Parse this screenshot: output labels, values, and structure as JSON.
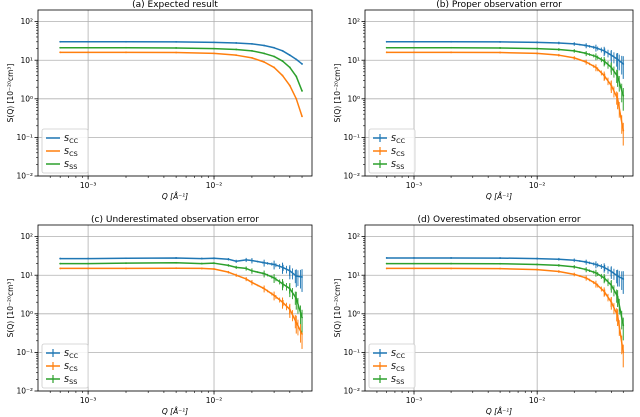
{
  "figure": {
    "axes": {
      "xlabel": "Q [Å⁻¹]",
      "ylabel": "S(Q) [10⁻²⁰cm³]",
      "x_ticks": [
        {
          "value": 0.001,
          "label": "10⁻³"
        },
        {
          "value": 0.01,
          "label": "10⁻²"
        }
      ],
      "y_ticks": [
        {
          "value": 0.01,
          "label": "10⁻²"
        },
        {
          "value": 0.1,
          "label": "10⁻¹"
        },
        {
          "value": 1,
          "label": "10⁰"
        },
        {
          "value": 10,
          "label": "10¹"
        },
        {
          "value": 100,
          "label": "10²"
        }
      ],
      "legend": [
        "S_CC",
        "S_CS",
        "S_SS"
      ]
    }
  },
  "chart_data": [
    {
      "type": "line",
      "title": "(a) Expected result",
      "xlabel": "Q [Å⁻¹]",
      "ylabel": "S(Q) [10⁻²⁰cm³]",
      "xscale": "log",
      "yscale": "log",
      "xlim": [
        0.0004,
        0.06
      ],
      "ylim": [
        0.01,
        200
      ],
      "grid": true,
      "legend_position": "lower-left",
      "error_bars": false,
      "x": [
        0.0006,
        0.001,
        0.002,
        0.005,
        0.01,
        0.015,
        0.02,
        0.025,
        0.03,
        0.035,
        0.04,
        0.045,
        0.05
      ],
      "series": [
        {
          "name": "S_CC",
          "color": "#1f77b4",
          "values": [
            30,
            30,
            30,
            29.8,
            29,
            28,
            26.5,
            24,
            21,
            17.5,
            13.5,
            10.5,
            8
          ]
        },
        {
          "name": "S_CS",
          "color": "#ff7f0e",
          "values": [
            16,
            16,
            16,
            15.8,
            15,
            13.5,
            11.5,
            9,
            6.5,
            4,
            2.2,
            1,
            0.35
          ]
        },
        {
          "name": "S_SS",
          "color": "#2ca02c",
          "values": [
            21,
            21,
            21,
            20.8,
            20,
            19,
            17.5,
            15,
            12.5,
            9.5,
            6.5,
            3.8,
            1.6
          ]
        }
      ]
    },
    {
      "type": "line",
      "title": "(b) Proper observation error",
      "xlabel": "Q [Å⁻¹]",
      "ylabel": "S(Q) [10⁻²⁰cm³]",
      "xscale": "log",
      "yscale": "log",
      "xlim": [
        0.0004,
        0.06
      ],
      "ylim": [
        0.01,
        200
      ],
      "grid": true,
      "legend_position": "lower-left",
      "error_bars": true,
      "x": [
        0.0006,
        0.001,
        0.002,
        0.005,
        0.01,
        0.015,
        0.02,
        0.025,
        0.03,
        0.035,
        0.04,
        0.045,
        0.05
      ],
      "series": [
        {
          "name": "S_CC",
          "color": "#1f77b4",
          "values": [
            30,
            30,
            30,
            29.8,
            29,
            28,
            26.5,
            24,
            21,
            17.5,
            13.5,
            10.5,
            8
          ]
        },
        {
          "name": "S_CS",
          "color": "#ff7f0e",
          "values": [
            16,
            16,
            16,
            15.8,
            15,
            13.5,
            11.5,
            9,
            6.5,
            4,
            2.2,
            1,
            0.15
          ]
        },
        {
          "name": "S_SS",
          "color": "#2ca02c",
          "values": [
            21,
            21,
            21,
            20.8,
            20,
            19,
            17.5,
            15,
            12.5,
            9.5,
            6.5,
            3.8,
            1.2
          ]
        }
      ]
    },
    {
      "type": "line",
      "title": "(c) Underestimated observation error",
      "xlabel": "Q [Å⁻¹]",
      "ylabel": "S(Q) [10⁻²⁰cm³]",
      "xscale": "log",
      "yscale": "log",
      "xlim": [
        0.0004,
        0.06
      ],
      "ylim": [
        0.01,
        200
      ],
      "grid": true,
      "legend_position": "lower-left",
      "error_bars": true,
      "x": [
        0.0006,
        0.001,
        0.002,
        0.005,
        0.008,
        0.01,
        0.013,
        0.015,
        0.018,
        0.02,
        0.025,
        0.03,
        0.035,
        0.04,
        0.045,
        0.05
      ],
      "series": [
        {
          "name": "S_CC",
          "color": "#1f77b4",
          "values": [
            27,
            27,
            27.5,
            28,
            27,
            27.5,
            26,
            23,
            25,
            24,
            21,
            19,
            16,
            13,
            9.5,
            9
          ]
        },
        {
          "name": "S_CS",
          "color": "#ff7f0e",
          "values": [
            15,
            15,
            15,
            15.2,
            15,
            14.5,
            12,
            10,
            8,
            6.5,
            4.5,
            3,
            2,
            1.3,
            0.6,
            0.3
          ]
        },
        {
          "name": "S_SS",
          "color": "#2ca02c",
          "values": [
            20,
            20,
            20.5,
            21,
            20,
            20.5,
            18,
            16,
            15,
            13,
            11,
            8.5,
            6,
            4.5,
            2.5,
            0.8
          ]
        }
      ]
    },
    {
      "type": "line",
      "title": "(d) Overestimated observation error",
      "xlabel": "Q [Å⁻¹]",
      "ylabel": "S(Q) [10⁻²⁰cm³]",
      "xscale": "log",
      "yscale": "log",
      "xlim": [
        0.0004,
        0.06
      ],
      "ylim": [
        0.01,
        200
      ],
      "grid": true,
      "legend_position": "lower-left",
      "error_bars": true,
      "x": [
        0.0006,
        0.001,
        0.002,
        0.005,
        0.01,
        0.015,
        0.02,
        0.025,
        0.03,
        0.035,
        0.04,
        0.045,
        0.05
      ],
      "series": [
        {
          "name": "S_CC",
          "color": "#1f77b4",
          "values": [
            28,
            28,
            28,
            27.8,
            27,
            26,
            24.5,
            22,
            19,
            16,
            12.5,
            9.5,
            8
          ]
        },
        {
          "name": "S_CS",
          "color": "#ff7f0e",
          "values": [
            15,
            15,
            15,
            14.8,
            14,
            12.5,
            10.5,
            8.5,
            6,
            3.8,
            2,
            0.9,
            0.1
          ]
        },
        {
          "name": "S_SS",
          "color": "#2ca02c",
          "values": [
            20,
            20,
            20,
            19.8,
            19,
            18,
            16.5,
            14,
            11.5,
            8.5,
            5.5,
            2.8,
            0.5
          ]
        }
      ]
    }
  ]
}
